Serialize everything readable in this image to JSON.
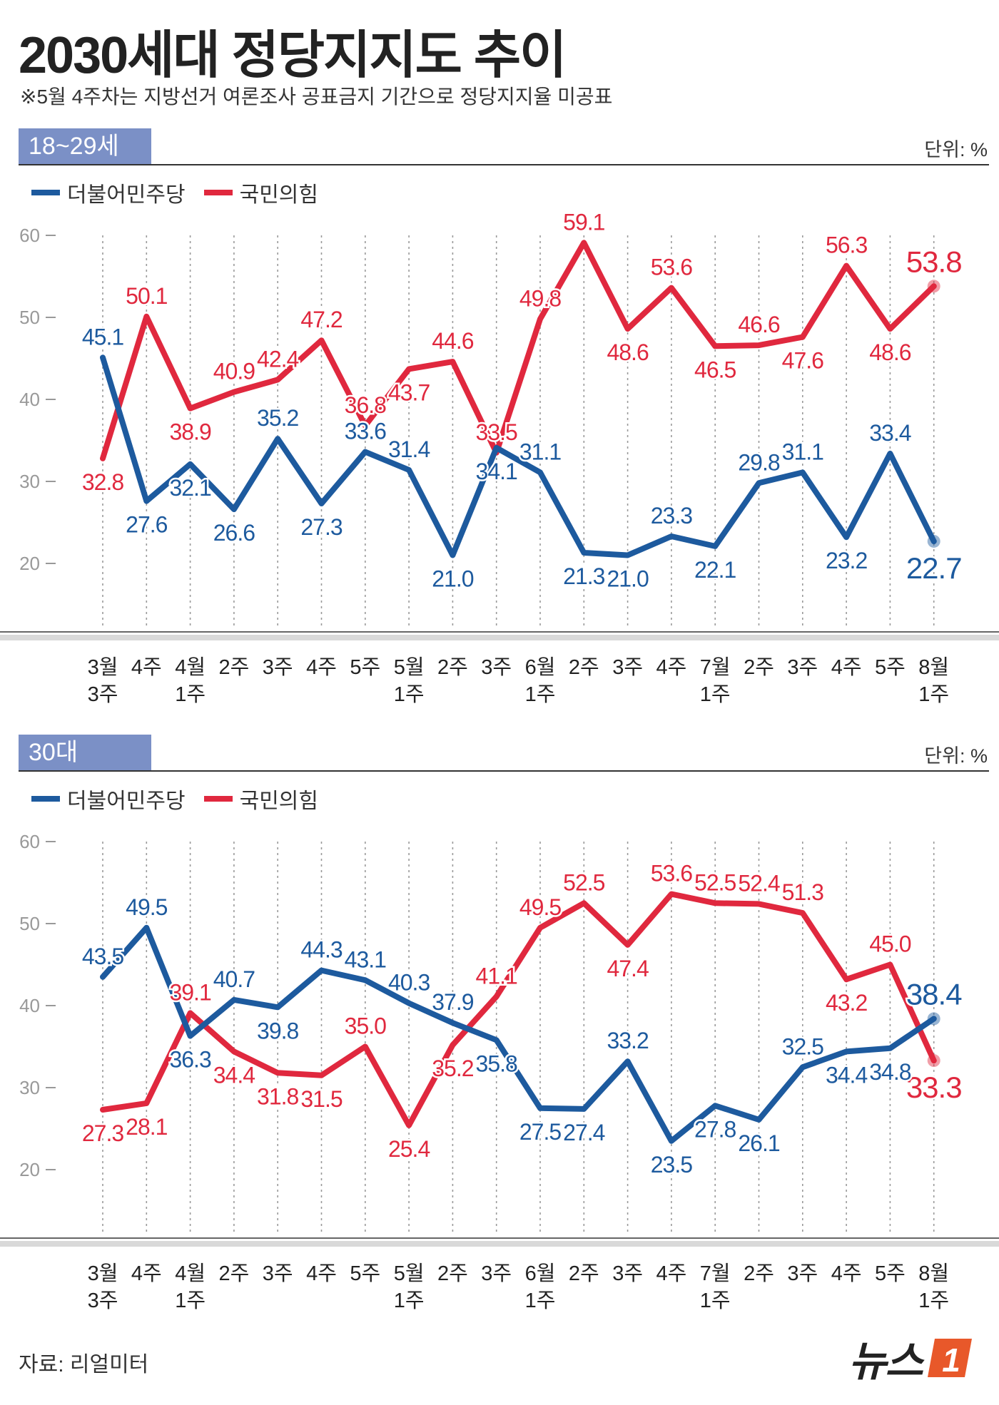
{
  "header": {
    "title": "2030세대 정당지지도 추이",
    "subtitle": "※5월 4주차는 지방선거 여론조사 공표금지 기간으로 정당지지율 미공표"
  },
  "legend": {
    "dem": "더불어민주당",
    "ppp": "국민의힘"
  },
  "unit_label": "단위: %",
  "colors": {
    "dem": "#1d5a9e",
    "ppp": "#e0283e",
    "tag": "#7b90c6"
  },
  "footer": {
    "source": "자료: 리얼미터",
    "logo": "뉴스"
  },
  "chart_data": [
    {
      "type": "line",
      "panel_label": "18~29세",
      "categories": [
        "3월\n3주",
        "4주",
        "4월\n1주",
        "2주",
        "3주",
        "4주",
        "5주",
        "5월\n1주",
        "2주",
        "3주",
        "6월\n1주",
        "2주",
        "3주",
        "4주",
        "7월\n1주",
        "2주",
        "3주",
        "4주",
        "5주",
        "8월\n1주"
      ],
      "ylim": [
        20,
        60
      ],
      "yticks": [
        20,
        30,
        40,
        50,
        60
      ],
      "series": [
        {
          "name": "더불어민주당",
          "values": [
            45.1,
            27.6,
            32.1,
            26.6,
            35.2,
            27.3,
            33.6,
            31.4,
            21.0,
            34.1,
            31.1,
            21.3,
            21.0,
            23.3,
            22.1,
            29.8,
            31.1,
            23.2,
            33.4,
            22.7
          ]
        },
        {
          "name": "국민의힘",
          "values": [
            32.8,
            50.1,
            38.9,
            40.9,
            42.4,
            47.2,
            36.8,
            43.7,
            44.6,
            33.5,
            49.8,
            59.1,
            48.6,
            53.6,
            46.5,
            46.6,
            47.6,
            56.3,
            48.6,
            53.8
          ]
        }
      ]
    },
    {
      "type": "line",
      "panel_label": "30대",
      "categories": [
        "3월\n3주",
        "4주",
        "4월\n1주",
        "2주",
        "3주",
        "4주",
        "5주",
        "5월\n1주",
        "2주",
        "3주",
        "6월\n1주",
        "2주",
        "3주",
        "4주",
        "7월\n1주",
        "2주",
        "3주",
        "4주",
        "5주",
        "8월\n1주"
      ],
      "ylim": [
        20,
        60
      ],
      "yticks": [
        20,
        30,
        40,
        50,
        60
      ],
      "series": [
        {
          "name": "더불어민주당",
          "values": [
            43.5,
            49.5,
            36.3,
            40.7,
            39.8,
            44.3,
            43.1,
            40.3,
            37.9,
            35.8,
            27.5,
            27.4,
            33.2,
            23.5,
            27.8,
            26.1,
            32.5,
            34.4,
            34.8,
            38.4
          ]
        },
        {
          "name": "국민의힘",
          "values": [
            27.3,
            28.1,
            39.1,
            34.4,
            31.8,
            31.5,
            35.0,
            25.4,
            35.2,
            41.1,
            49.5,
            52.5,
            47.4,
            53.6,
            52.5,
            52.4,
            51.3,
            43.2,
            45.0,
            33.3
          ]
        }
      ]
    }
  ]
}
